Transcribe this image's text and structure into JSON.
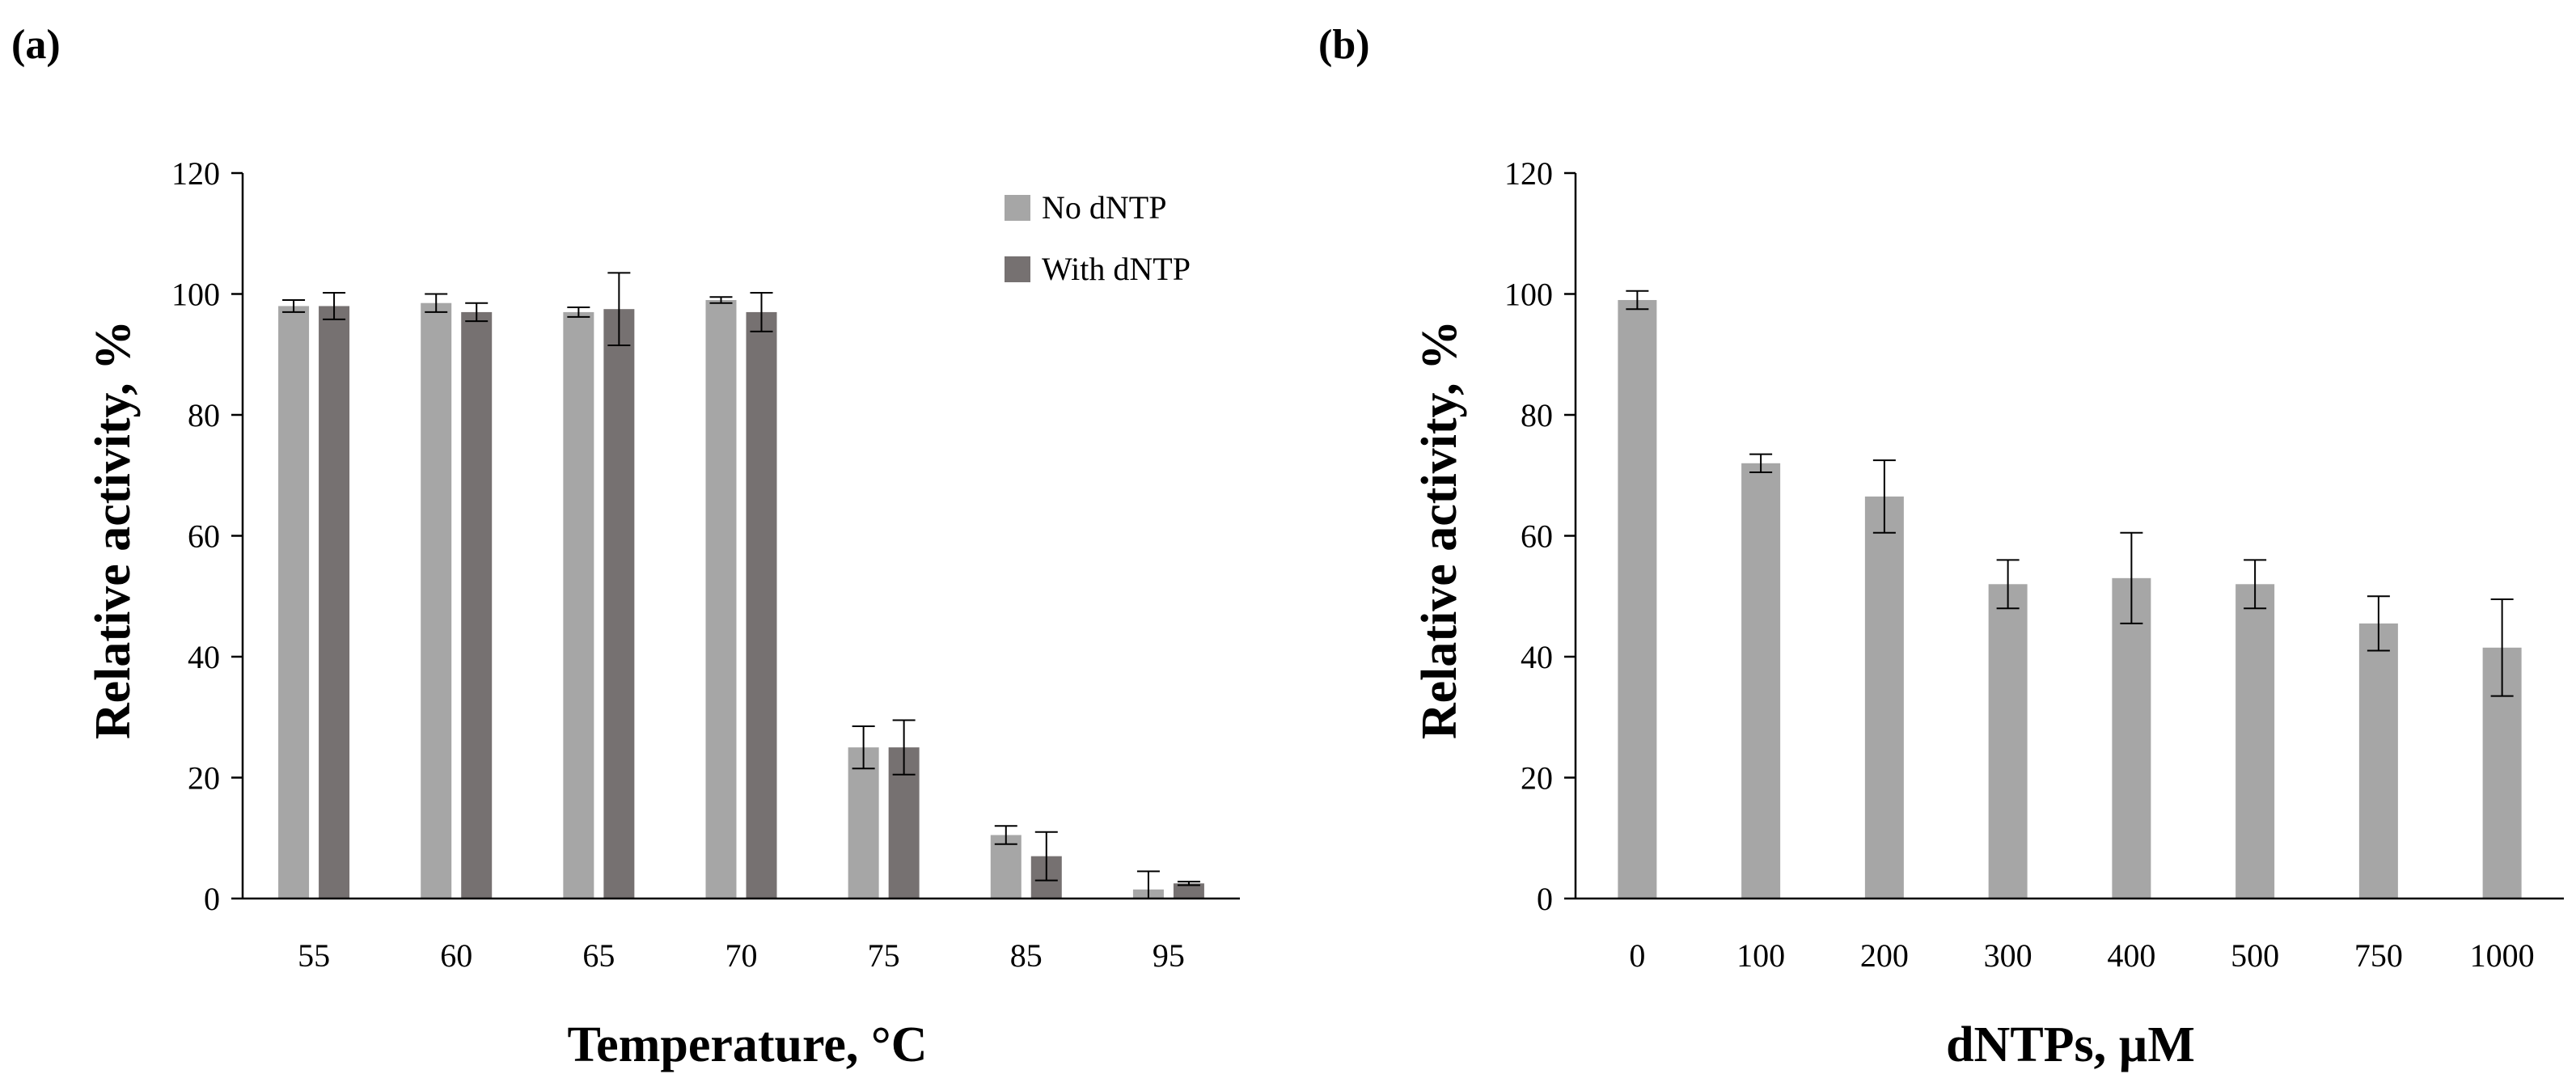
{
  "colors": {
    "no_dntp": "#a6a6a6",
    "with_dntp": "#767171",
    "axis": "#000000",
    "error_bar": "#000000"
  },
  "chart_data": [
    {
      "panel": "(a)",
      "type": "bar",
      "title": "",
      "xlabel": "Temperature, °C",
      "ylabel": "Relative activity, %",
      "ylim": [
        0,
        120
      ],
      "yticks": [
        "0",
        "20",
        "40",
        "60",
        "80",
        "100",
        "120"
      ],
      "grid": false,
      "legend": "top-right",
      "categories": [
        "55",
        "60",
        "65",
        "70",
        "75",
        "85",
        "95"
      ],
      "series": [
        {
          "name": "No dNTP",
          "color": "#a6a6a6",
          "values": [
            98,
            98.5,
            97,
            99,
            25,
            10.5,
            1.5
          ],
          "errors": [
            1,
            1.5,
            0.8,
            0.5,
            3.5,
            1.5,
            3
          ]
        },
        {
          "name": "With dNTP",
          "color": "#767171",
          "values": [
            98,
            97,
            97.5,
            97,
            25,
            7,
            2.5
          ],
          "errors": [
            2.2,
            1.5,
            6,
            3.2,
            4.5,
            4,
            0.3
          ]
        }
      ]
    },
    {
      "panel": "(b)",
      "type": "bar",
      "title": "",
      "xlabel": "dNTPs, µM",
      "ylabel": "Relative activity, %",
      "ylim": [
        0,
        120
      ],
      "yticks": [
        "0",
        "20",
        "40",
        "60",
        "80",
        "100",
        "120"
      ],
      "grid": false,
      "legend": "none",
      "categories": [
        "0",
        "100",
        "200",
        "300",
        "400",
        "500",
        "750",
        "1000"
      ],
      "series": [
        {
          "name": "Relative activity",
          "color": "#a6a6a6",
          "values": [
            99,
            72,
            66.5,
            52,
            53,
            52,
            45.5,
            41.5
          ],
          "errors": [
            1.5,
            1.5,
            6,
            4,
            7.5,
            4,
            4.5,
            8
          ]
        }
      ]
    }
  ]
}
